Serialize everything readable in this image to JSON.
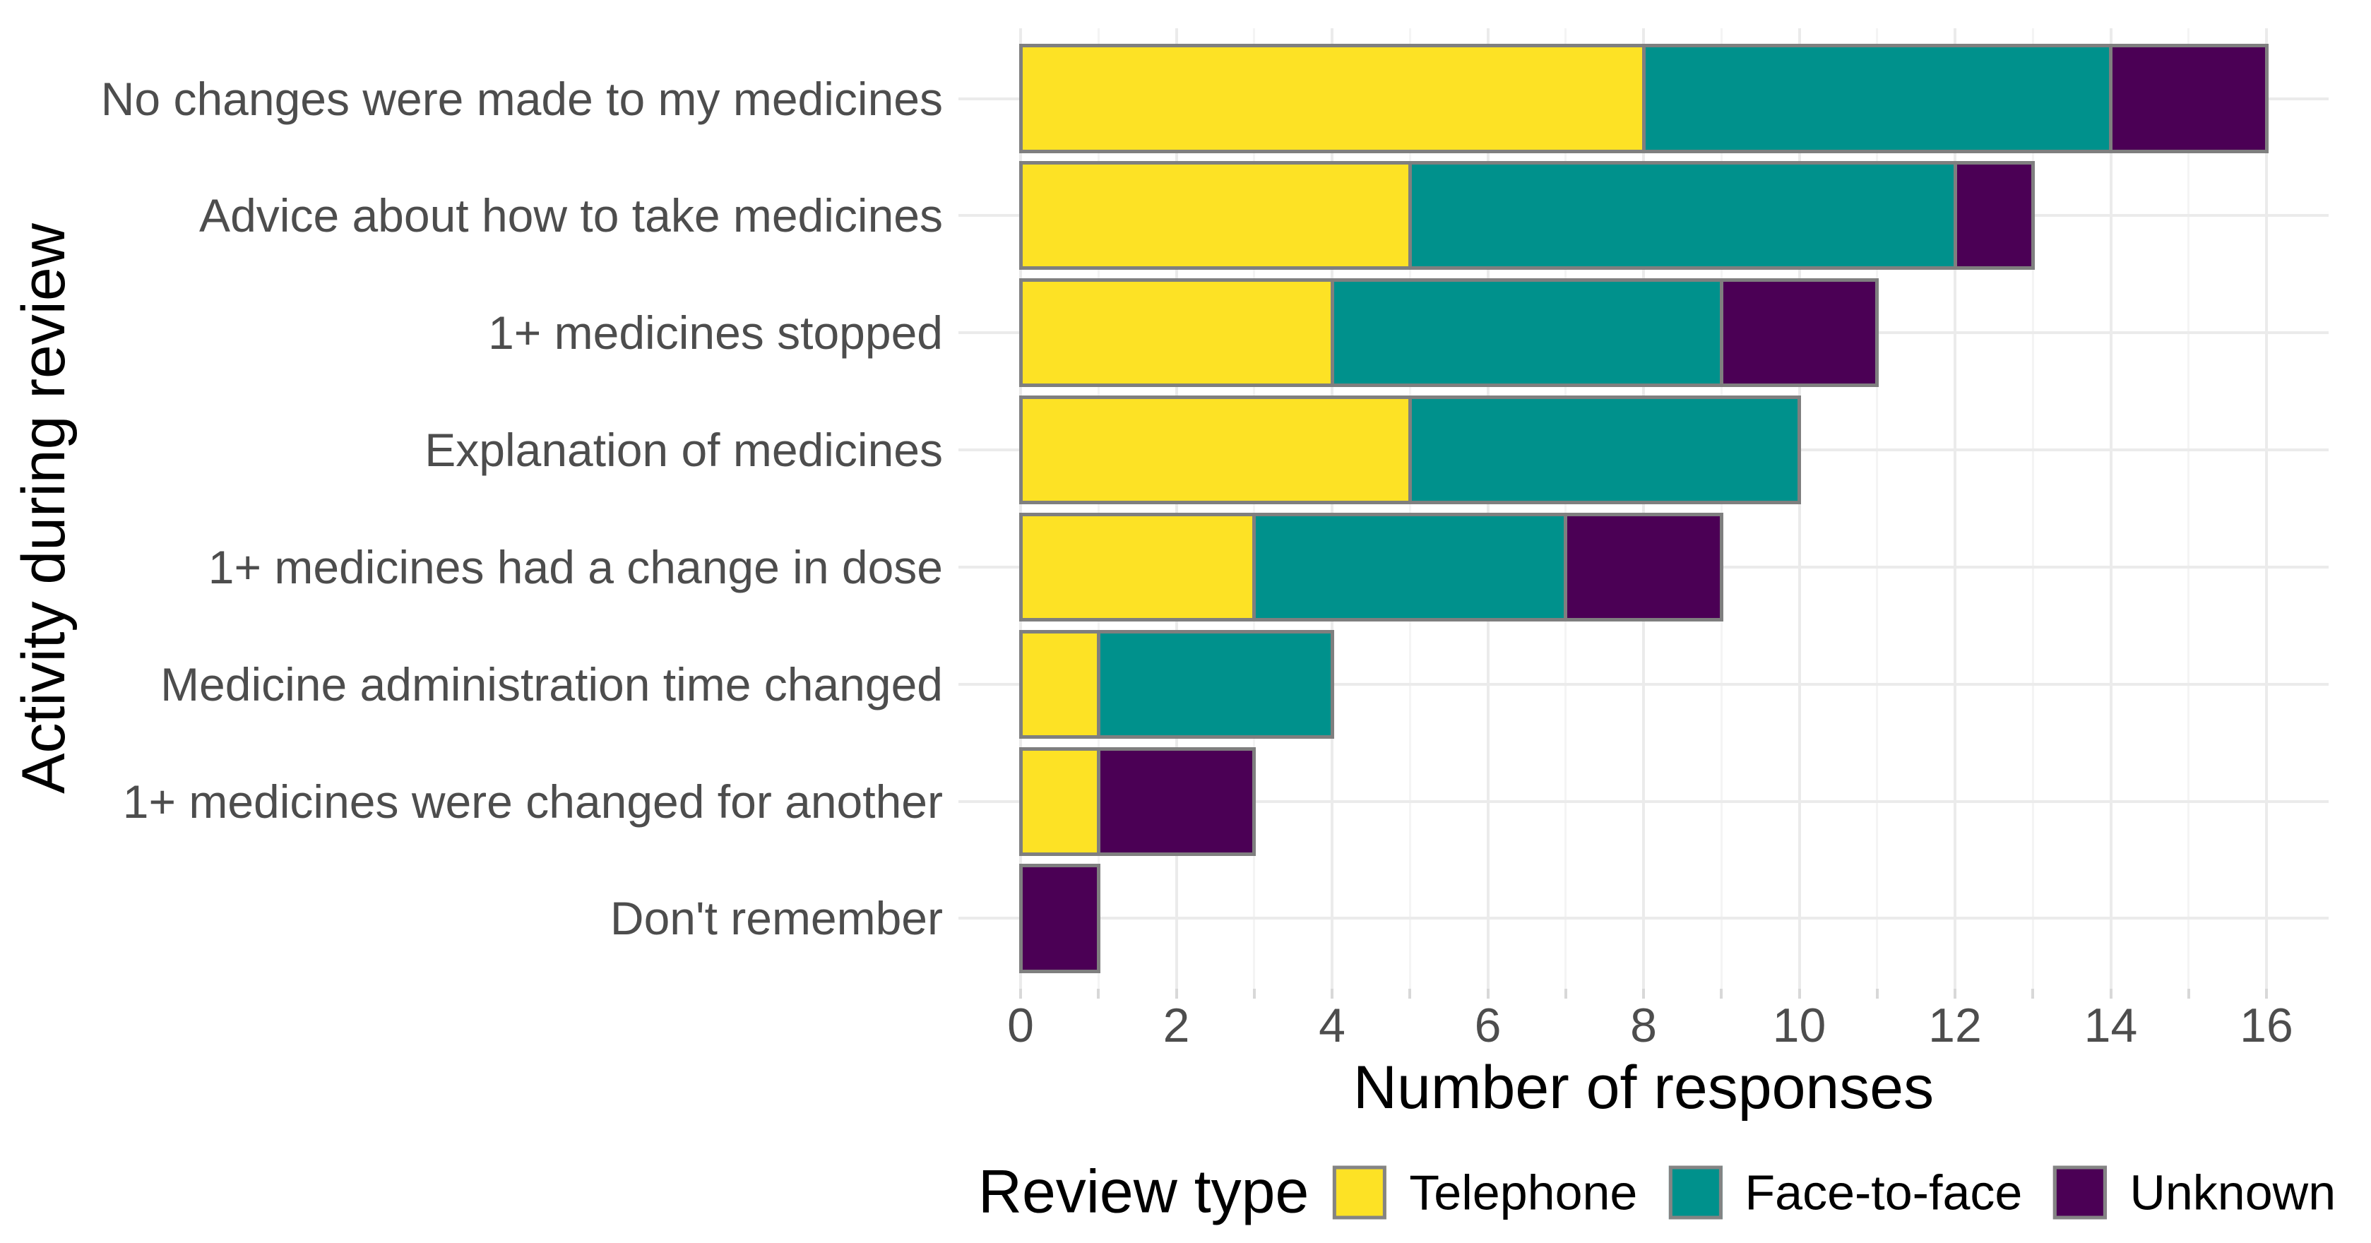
{
  "colors": {
    "background": "#FFFFFF",
    "bar_border": "#7F7F7F",
    "grid_major": "#EBEBEB",
    "grid_minor": "#F4F4F4",
    "tick_mark": "#D8D8D8",
    "axis_text": "#4D4D4D",
    "title_text": "#000000"
  },
  "chart_data": {
    "type": "bar",
    "orientation": "horizontal",
    "stacked": true,
    "title": "",
    "xlabel": "Number of responses",
    "ylabel": "Activity during review",
    "legend_title": "Review type",
    "legend_position": "bottom",
    "grid": true,
    "xlim": [
      0,
      16
    ],
    "x_ticks": [
      0,
      2,
      4,
      6,
      8,
      10,
      12,
      14,
      16
    ],
    "categories": [
      "No changes were made to my medicines",
      "Advice about how to take medicines",
      "1+ medicines stopped",
      "Explanation of medicines",
      "1+ medicines had a change in dose",
      "Medicine administration time changed",
      "1+ medicines were changed for another",
      "Don't remember"
    ],
    "series": [
      {
        "name": "Telephone",
        "color": "#FDE225",
        "values": [
          8,
          5,
          4,
          5,
          3,
          1,
          1,
          0
        ]
      },
      {
        "name": "Face-to-face",
        "color": "#00918C",
        "values": [
          6,
          7,
          5,
          5,
          4,
          3,
          0,
          0
        ]
      },
      {
        "name": "Unknown",
        "color": "#4B0055",
        "values": [
          2,
          1,
          2,
          0,
          2,
          0,
          2,
          1
        ]
      }
    ],
    "totals": [
      16,
      13,
      11,
      10,
      9,
      4,
      3,
      1
    ]
  }
}
